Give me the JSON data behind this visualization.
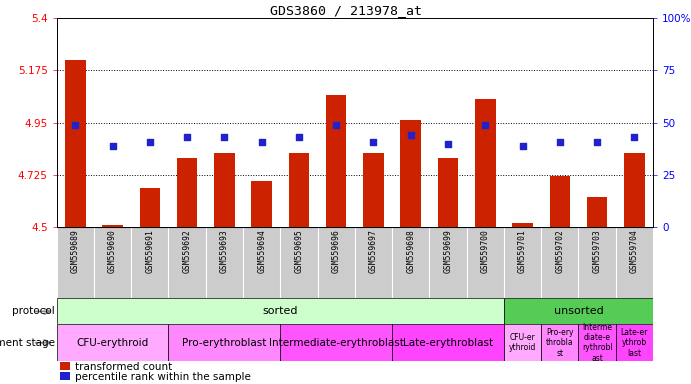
{
  "title": "GDS3860 / 213978_at",
  "samples": [
    "GSM559689",
    "GSM559690",
    "GSM559691",
    "GSM559692",
    "GSM559693",
    "GSM559694",
    "GSM559695",
    "GSM559696",
    "GSM559697",
    "GSM559698",
    "GSM559699",
    "GSM559700",
    "GSM559701",
    "GSM559702",
    "GSM559703",
    "GSM559704"
  ],
  "bar_values": [
    5.22,
    4.51,
    4.67,
    4.8,
    4.82,
    4.7,
    4.82,
    5.07,
    4.82,
    4.96,
    4.8,
    5.05,
    4.52,
    4.72,
    4.63,
    4.82
  ],
  "percentile_values": [
    49,
    39,
    41,
    43,
    43,
    41,
    43,
    49,
    41,
    44,
    40,
    49,
    39,
    41,
    41,
    43
  ],
  "bar_color": "#cc2200",
  "percentile_color": "#2222cc",
  "ymin": 4.5,
  "ymax": 5.4,
  "yticks_left": [
    4.5,
    4.725,
    4.95,
    5.175,
    5.4
  ],
  "yticks_right": [
    0,
    25,
    50,
    75,
    100
  ],
  "hlines": [
    4.725,
    4.95,
    5.175
  ],
  "protocol_sorted_count": 12,
  "protocol_label_sorted": "sorted",
  "protocol_label_unsorted": "unsorted",
  "protocol_color_sorted": "#ccffcc",
  "protocol_color_unsorted": "#55cc55",
  "dev_stage_groups_sorted": [
    {
      "label": "CFU-erythroid",
      "start": 0,
      "end": 3,
      "color": "#ffaaff"
    },
    {
      "label": "Pro-erythroblast",
      "start": 3,
      "end": 6,
      "color": "#ff88ff"
    },
    {
      "label": "Intermediate-erythroblast",
      "start": 6,
      "end": 9,
      "color": "#ff55ff"
    },
    {
      "label": "Late-erythroblast",
      "start": 9,
      "end": 12,
      "color": "#ff44ff"
    }
  ],
  "dev_stage_groups_unsorted": [
    {
      "label": "CFU-er\nythroid",
      "start": 12,
      "end": 13,
      "color": "#ffaaff"
    },
    {
      "label": "Pro-ery\nthrobla\nst",
      "start": 13,
      "end": 14,
      "color": "#ff88ff"
    },
    {
      "label": "Interme\ndiate-e\nrythrobl\nast",
      "start": 14,
      "end": 15,
      "color": "#ff55ff"
    },
    {
      "label": "Late-er\nythrob\nlast",
      "start": 15,
      "end": 16,
      "color": "#ff44ff"
    }
  ],
  "legend_items": [
    {
      "color": "#cc2200",
      "label": "transformed count"
    },
    {
      "color": "#2222cc",
      "label": "percentile rank within the sample"
    }
  ],
  "background_color": "#ffffff",
  "tick_area_bg": "#cccccc",
  "plot_area_bg": "#ffffff",
  "n_samples": 16
}
